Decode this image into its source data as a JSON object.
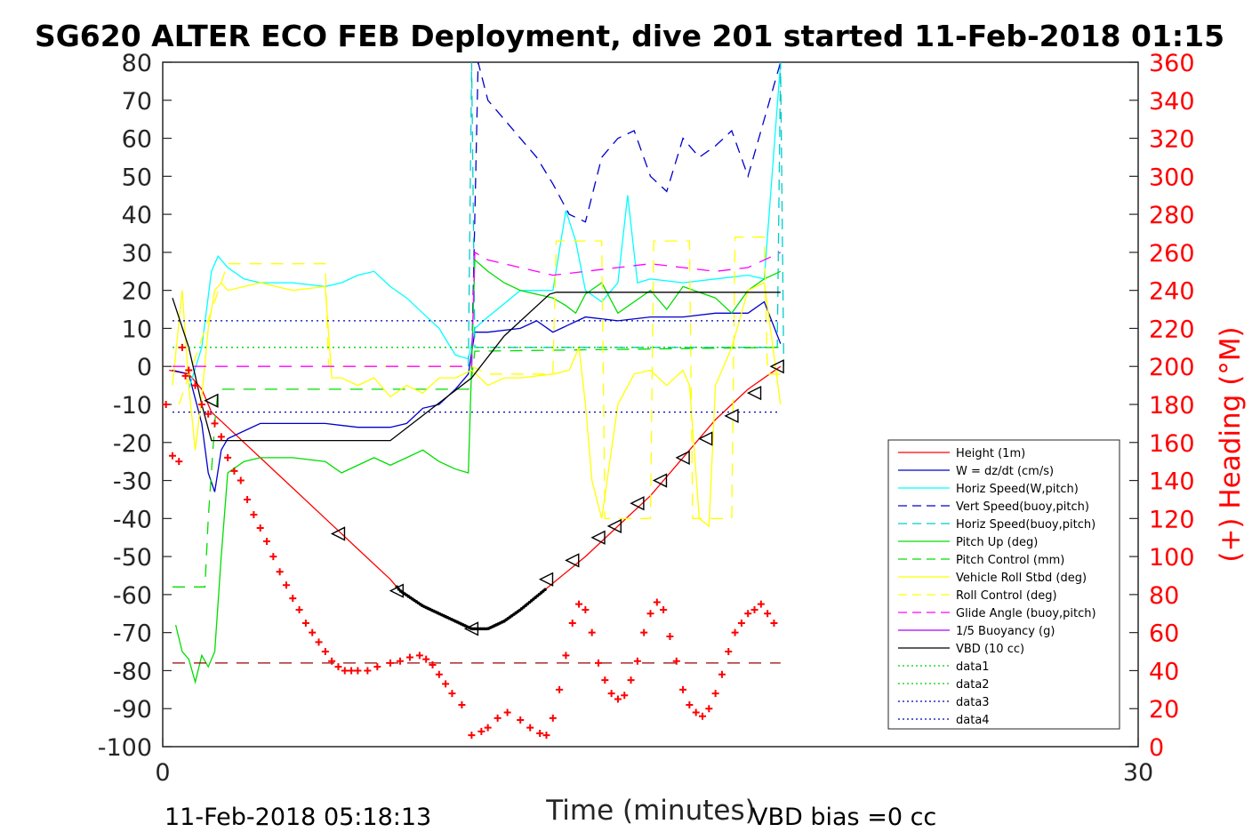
{
  "title": "SG620 ALTER ECO FEB Deployment, dive 201 started 11-Feb-2018 01:15",
  "footer": {
    "timestamp": "11-Feb-2018 05:18:13",
    "vbd_bias": "VBD bias =0 cc"
  },
  "chart_data": {
    "type": "line",
    "xlabel": "Time (minutes)",
    "ylabel": "",
    "y2label": "(+) Heading (°M)",
    "xlim": [
      0,
      30
    ],
    "ylim": [
      -100,
      80
    ],
    "y2lim": [
      0,
      360
    ],
    "xticks": [
      "0",
      "30"
    ],
    "yticks": [
      "80",
      "70",
      "60",
      "50",
      "40",
      "30",
      "20",
      "10",
      "0",
      "-10",
      "-20",
      "-30",
      "-40",
      "-50",
      "-60",
      "-70",
      "-80",
      "-90",
      "-100"
    ],
    "y2ticks": [
      "360",
      "340",
      "320",
      "300",
      "280",
      "260",
      "240",
      "220",
      "200",
      "180",
      "160",
      "140",
      "120",
      "100",
      "80",
      "60",
      "40",
      "20",
      "0"
    ],
    "grid": false,
    "legend_position": "lower-right",
    "colors": {
      "height": "#ff0000",
      "w": "#0000cc",
      "horiz": "#00ffff",
      "vert_buoy": "#0000cc",
      "horiz_buoy": "#00cccc",
      "pitch": "#00dd00",
      "pitch_ctl": "#00dd00",
      "roll": "#ffff00",
      "roll_ctl": "#ffff00",
      "glide": "#ff00ff",
      "buoy": "#aa00ff",
      "vbd": "#000000",
      "data1": "#00cc00",
      "data3": "#0000aa",
      "heading": "#ff0000"
    },
    "legend": [
      {
        "label": "Height (1m)",
        "color": "#ff0000",
        "dash": "solid"
      },
      {
        "label": "W = dz/dt (cm/s)",
        "color": "#0000cc",
        "dash": "solid"
      },
      {
        "label": "Horiz Speed(W,pitch)",
        "color": "#00ffff",
        "dash": "solid"
      },
      {
        "label": "Vert Speed(buoy,pitch)",
        "color": "#0000cc",
        "dash": "dashed"
      },
      {
        "label": "Horiz Speed(buoy,pitch)",
        "color": "#00cccc",
        "dash": "dashed"
      },
      {
        "label": "Pitch Up (deg)",
        "color": "#00dd00",
        "dash": "solid"
      },
      {
        "label": "Pitch Control (mm)",
        "color": "#00dd00",
        "dash": "dashed"
      },
      {
        "label": "Vehicle Roll Stbd (deg)",
        "color": "#ffff00",
        "dash": "solid"
      },
      {
        "label": "Roll Control (deg)",
        "color": "#ffff00",
        "dash": "dashed"
      },
      {
        "label": "Glide Angle (buoy,pitch)",
        "color": "#ff00ff",
        "dash": "dashed"
      },
      {
        "label": "1/5 Buoyancy (g)",
        "color": "#aa00ff",
        "dash": "solid"
      },
      {
        "label": "VBD (10 cc)",
        "color": "#000000",
        "dash": "solid"
      },
      {
        "label": "data1",
        "color": "#00cc00",
        "dash": "dotted"
      },
      {
        "label": "data2",
        "color": "#00cc00",
        "dash": "dotted"
      },
      {
        "label": "data3",
        "color": "#0000aa",
        "dash": "dotted"
      },
      {
        "label": "data4",
        "color": "#0000aa",
        "dash": "dotted"
      }
    ],
    "series": [
      {
        "key": "height",
        "color": "#ff0000",
        "x": [
          0.2,
          0.8,
          1.2,
          1.5,
          2,
          3,
          4,
          5,
          6,
          7,
          7.3,
          8,
          9,
          9.5,
          10,
          10.5,
          11,
          12,
          13,
          14,
          15,
          16,
          17,
          18,
          19
        ],
        "y": [
          -1,
          -2,
          -6,
          -12,
          -16,
          -24,
          -32,
          -40,
          -48,
          -56,
          -59,
          -63,
          -67,
          -69,
          -69,
          -67,
          -64,
          -57,
          -50,
          -42,
          -34,
          -24,
          -14,
          -6,
          0
        ]
      },
      {
        "key": "w",
        "color": "#0000cc",
        "x": [
          0.3,
          0.8,
          1.2,
          1.4,
          1.6,
          1.8,
          2,
          2.5,
          3,
          4,
          5,
          6,
          7,
          7.5,
          8,
          8.5,
          9,
          9.4,
          9.6,
          10,
          11,
          11.5,
          12,
          12.5,
          13,
          14,
          15,
          16,
          17,
          18,
          18.5,
          19
        ],
        "y": [
          -1,
          -2,
          -15,
          -28,
          -33,
          -22,
          -19,
          -17,
          -15,
          -15,
          -15,
          -16,
          -16,
          -15,
          -11,
          -10,
          -6,
          -2,
          9,
          9,
          10,
          12,
          9,
          11,
          13,
          12,
          13,
          13,
          14,
          14,
          17,
          6
        ]
      },
      {
        "key": "horiz",
        "color": "#00ffff",
        "x": [
          0.8,
          1.2,
          1.5,
          1.7,
          2,
          2.5,
          3,
          4,
          5,
          5.5,
          6,
          6.5,
          7,
          7.5,
          8,
          8.5,
          9,
          9.4,
          9.6,
          10,
          11,
          12,
          12.4,
          12.7,
          13,
          13.5,
          14,
          14.3,
          14.6,
          15,
          16,
          17,
          18,
          18.5,
          19
        ],
        "y": [
          -6,
          5,
          25,
          29,
          26,
          23,
          22,
          22,
          21,
          22,
          24,
          25,
          21,
          18,
          14,
          10,
          3,
          2,
          10,
          13,
          20,
          20,
          41,
          33,
          20,
          17,
          22,
          45,
          22,
          23,
          22,
          23,
          24,
          23,
          80
        ]
      },
      {
        "key": "vert_buoy",
        "color": "#0000cc",
        "dash": "12,8",
        "x": [
          9.5,
          9.7,
          10,
          10.5,
          11,
          11.5,
          12,
          12.5,
          13,
          13.5,
          14,
          14.5,
          15,
          15.5,
          16,
          16.5,
          17,
          17.5,
          18,
          18.5,
          19
        ],
        "y": [
          0,
          80,
          70,
          65,
          60,
          55,
          48,
          40,
          38,
          55,
          60,
          62,
          50,
          46,
          60,
          55,
          58,
          62,
          50,
          65,
          80
        ]
      },
      {
        "key": "horiz_buoy",
        "color": "#00cccc",
        "dash": "12,8",
        "x": [
          9.4,
          9.5,
          9.6,
          18.9,
          19,
          19.1
        ],
        "y": [
          0,
          80,
          5,
          5,
          80,
          0
        ]
      },
      {
        "key": "pitch",
        "color": "#00dd00",
        "x": [
          0.4,
          0.6,
          0.8,
          1,
          1.2,
          1.4,
          1.6,
          1.8,
          2,
          2.5,
          3,
          4,
          5,
          5.5,
          6,
          6.5,
          7,
          7.5,
          8,
          8.5,
          9,
          9.4,
          9.6,
          10,
          10.5,
          11,
          12,
          12.4,
          12.7,
          13,
          13.5,
          14,
          15,
          15.5,
          16,
          17,
          17.5,
          18,
          18.5,
          19
        ],
        "y": [
          -68,
          -75,
          -77,
          -83,
          -76,
          -79,
          -75,
          -50,
          -28,
          -25,
          -24,
          -24,
          -25,
          -28,
          -26,
          -24,
          -26,
          -24,
          -22,
          -25,
          -27,
          -28,
          28,
          25,
          22,
          20,
          18,
          16,
          14,
          19,
          22,
          14,
          20,
          15,
          21,
          18,
          14,
          20,
          23,
          25
        ]
      },
      {
        "key": "pitch_ctl",
        "color": "#00dd00",
        "dash": "14,10",
        "x": [
          0.3,
          1.3,
          1.4,
          1.6,
          1.7,
          9.4,
          9.5,
          9.6,
          19
        ],
        "y": [
          -58,
          -58,
          -40,
          -15,
          -6,
          -6,
          -3,
          4,
          5
        ]
      },
      {
        "key": "roll",
        "color": "#ffff00",
        "x": [
          0.3,
          0.6,
          0.8,
          1,
          1.2,
          1.4,
          1.6,
          1.8,
          2,
          2.5,
          3,
          4,
          5,
          5.2,
          5.5,
          6,
          6.5,
          7,
          7.5,
          8,
          8.5,
          9,
          9.5,
          10,
          10.5,
          11,
          12,
          12.5,
          12.8,
          13,
          13.2,
          13.5,
          14,
          14.5,
          15,
          15.5,
          16,
          16.2,
          16.5,
          16.8,
          17,
          17.5,
          18,
          18.5,
          19
        ],
        "y": [
          -5,
          20,
          -5,
          -22,
          -8,
          10,
          20,
          22,
          20,
          21,
          22,
          20,
          21,
          -3,
          -3,
          -5,
          -3,
          -8,
          -5,
          -7,
          -3,
          -3,
          -1,
          -5,
          -3,
          -3,
          -2,
          -1,
          5,
          -10,
          -30,
          -40,
          -10,
          -2,
          -1,
          -5,
          -1,
          -5,
          -40,
          -42,
          -5,
          5,
          20,
          22,
          -10
        ]
      },
      {
        "key": "roll_ctl",
        "color": "#ffff00",
        "dash": "14,10",
        "x": [
          0.5,
          2,
          3,
          4,
          5,
          5.1,
          9.5,
          10,
          12,
          12.1,
          13.5,
          13.6,
          15,
          15.1,
          16.2,
          16.3,
          17.5,
          17.6,
          18.5,
          18.6,
          19
        ],
        "y": [
          -10,
          27,
          27,
          27,
          27,
          0,
          0,
          -2,
          -2,
          33,
          33,
          -40,
          -40,
          33,
          33,
          -40,
          -40,
          34,
          34,
          -2,
          -2
        ]
      },
      {
        "key": "glide",
        "color": "#ff00ff",
        "dash": "14,10",
        "x": [
          0.3,
          9.5,
          9.6,
          10,
          11,
          12,
          13,
          14,
          15,
          16,
          17,
          18,
          19
        ],
        "y": [
          0,
          0,
          30,
          28,
          26,
          24,
          25,
          26,
          27,
          26,
          25,
          26,
          30
        ]
      },
      {
        "key": "vbd",
        "color": "#000000",
        "x": [
          0.3,
          0.8,
          1.2,
          1.5,
          7,
          9.5,
          10.5,
          11.9,
          12.1,
          19
        ],
        "y": [
          18,
          5,
          -10,
          -19.5,
          -19.5,
          -3,
          8,
          19,
          19.5,
          19.5
        ]
      },
      {
        "key": "data1",
        "color": "#00cc00",
        "dash": "2,4",
        "x": [
          0.3,
          19
        ],
        "y": [
          5,
          5
        ]
      },
      {
        "key": "data3",
        "color": "#0000aa",
        "dash": "2,4",
        "x": [
          0.3,
          19
        ],
        "y": [
          12,
          12
        ]
      },
      {
        "key": "data4",
        "color": "#0000aa",
        "dash": "2,4",
        "x": [
          0.3,
          19
        ],
        "y": [
          -12,
          -12
        ]
      },
      {
        "key": "heading_ref",
        "color": "#990000",
        "dash": "14,10",
        "axis": "right",
        "x": [
          0.3,
          19
        ],
        "y": [
          44,
          44
        ]
      }
    ],
    "markers": {
      "triangles": [
        {
          "x": 1.5,
          "y": -9
        },
        {
          "x": 5.4,
          "y": -44
        },
        {
          "x": 7.2,
          "y": -59
        },
        {
          "x": 9.5,
          "y": -69
        },
        {
          "x": 11.8,
          "y": -56
        },
        {
          "x": 12.6,
          "y": -51
        },
        {
          "x": 13.4,
          "y": -45
        },
        {
          "x": 13.9,
          "y": -42
        },
        {
          "x": 14.6,
          "y": -36
        },
        {
          "x": 15.3,
          "y": -30
        },
        {
          "x": 16,
          "y": -24
        },
        {
          "x": 16.7,
          "y": -19
        },
        {
          "x": 17.5,
          "y": -13
        },
        {
          "x": 18.2,
          "y": -7
        },
        {
          "x": 18.9,
          "y": 0
        }
      ],
      "dots_range": [
        7.2,
        11.8
      ]
    },
    "heading": {
      "x": [
        0.1,
        0.3,
        0.5,
        0.6,
        0.7,
        0.8,
        1,
        1.2,
        1.4,
        1.6,
        1.8,
        2,
        2.2,
        2.4,
        2.6,
        2.8,
        3,
        3.2,
        3.4,
        3.6,
        3.8,
        4,
        4.2,
        4.4,
        4.6,
        4.8,
        5,
        5.2,
        5.4,
        5.6,
        5.8,
        6,
        6.3,
        6.6,
        7,
        7.3,
        7.6,
        7.9,
        8.1,
        8.3,
        8.5,
        8.7,
        8.9,
        9.2,
        9.5,
        9.8,
        10,
        10.3,
        10.6,
        11,
        11.3,
        11.6,
        11.8,
        12,
        12.2,
        12.4,
        12.6,
        12.8,
        13,
        13.2,
        13.4,
        13.6,
        13.8,
        14,
        14.2,
        14.4,
        14.6,
        14.8,
        15,
        15.2,
        15.4,
        15.6,
        15.8,
        16,
        16.2,
        16.4,
        16.6,
        16.8,
        17,
        17.2,
        17.4,
        17.6,
        17.8,
        18,
        18.2,
        18.4,
        18.6,
        18.8
      ],
      "y": [
        180,
        153,
        150,
        210,
        195,
        198,
        190,
        180,
        175,
        170,
        163,
        152,
        145,
        140,
        130,
        122,
        115,
        108,
        100,
        92,
        85,
        78,
        72,
        65,
        60,
        55,
        50,
        45,
        42,
        40,
        40,
        40,
        40,
        42,
        44,
        45,
        47,
        48,
        46,
        43,
        38,
        33,
        28,
        22,
        6,
        8,
        10,
        15,
        18,
        14,
        10,
        7,
        6,
        15,
        30,
        48,
        65,
        75,
        72,
        60,
        44,
        35,
        28,
        25,
        27,
        35,
        45,
        60,
        70,
        76,
        72,
        58,
        45,
        30,
        22,
        18,
        16,
        20,
        28,
        38,
        50,
        60,
        65,
        70,
        72,
        75,
        70,
        65
      ]
    }
  }
}
